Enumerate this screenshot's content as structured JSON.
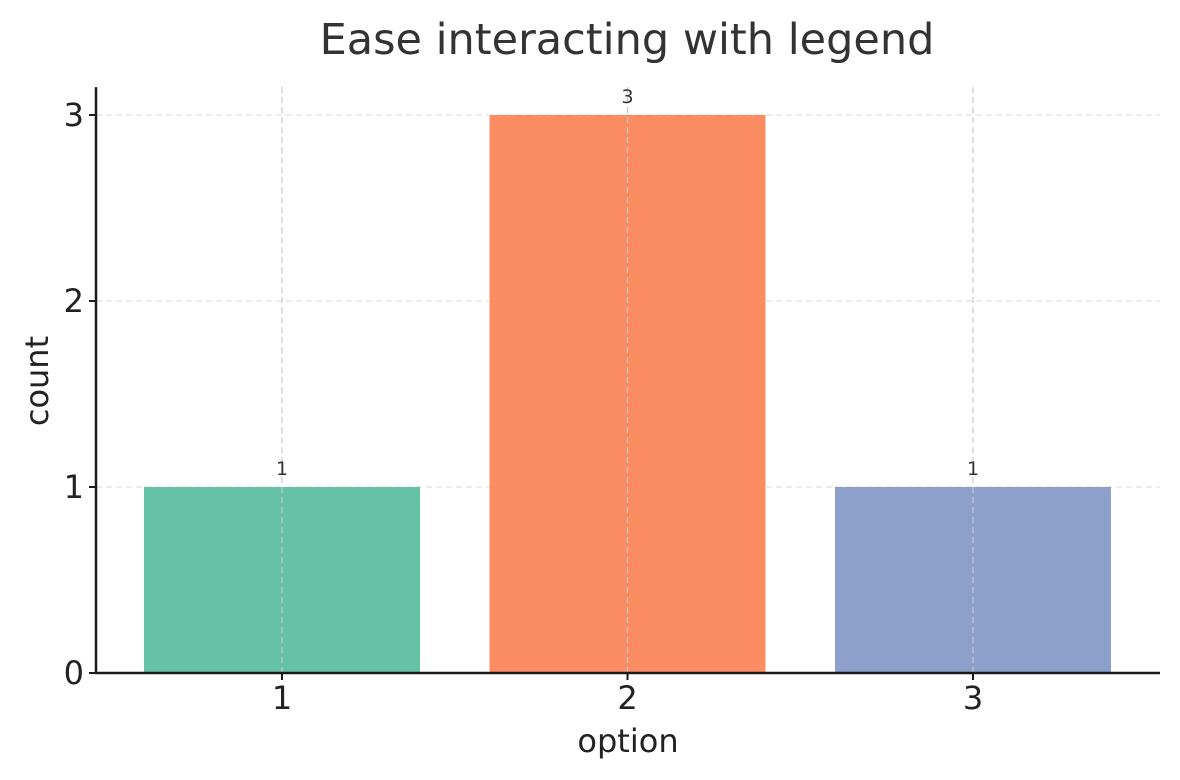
{
  "chart_data": {
    "type": "bar",
    "title": "Ease interacting with legend",
    "xlabel": "option",
    "ylabel": "count",
    "categories": [
      "1",
      "2",
      "3"
    ],
    "values": [
      1,
      3,
      1
    ],
    "data_labels": [
      "1",
      "3",
      "1"
    ],
    "colors": [
      "#66c2a5",
      "#fc8d62",
      "#8da0cb"
    ],
    "yticks": [
      0,
      1,
      2,
      3
    ],
    "ytick_labels": [
      "0",
      "1",
      "2",
      "3"
    ],
    "ylim": [
      0,
      3.15
    ],
    "grid": true,
    "legend": false
  }
}
